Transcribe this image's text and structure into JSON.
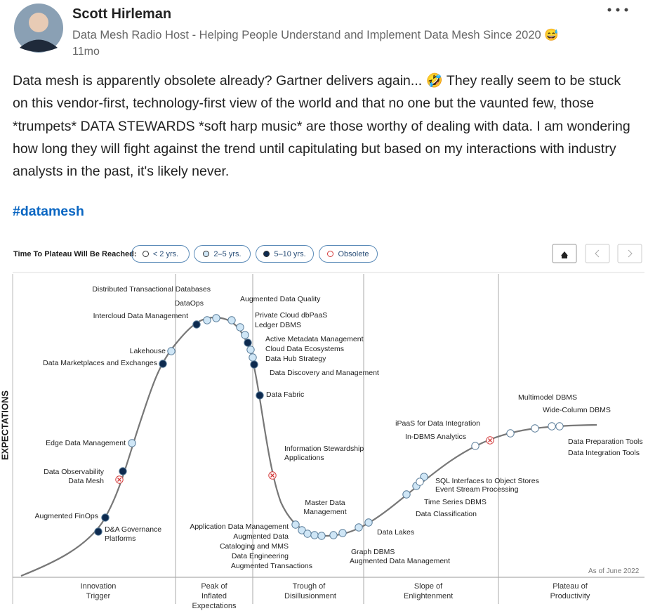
{
  "header": {
    "name": "Scott Hirleman",
    "headline": "Data Mesh Radio Host - Helping People Understand and Implement Data Mesh Since 2020 😅",
    "time": "11mo"
  },
  "post": {
    "text": "Data mesh is apparently obsolete already? Gartner delivers again... 🤣 They really seem to be stuck on this vendor-first, technology-first view of the world and that no one but the vaunted few, those *trumpets* DATA STEWARDS *soft harp music* are those worthy of dealing with data. I am wondering how long they will fight against the trend until capitulating but based on my interactions with industry analysts in the past, it's likely never.",
    "hashtag": "#datamesh"
  },
  "figure": {
    "legend_title": "Time To Plateau Will Be Reached:",
    "legend": [
      {
        "label": "< 2 yrs.",
        "color": "#ffffff"
      },
      {
        "label": "2–5 yrs.",
        "color": "#cfe6f6"
      },
      {
        "label": "5–10 yrs.",
        "color": "#0d2a4f"
      },
      {
        "label": "Obsolete",
        "color": "#d43b3b"
      }
    ],
    "y_axis": "EXPECTATIONS",
    "note": "As of June 2022",
    "phases": [
      "Innovation Trigger",
      "Peak of Inflated Expectations",
      "Trough of Disillusionment",
      "Slope of Enlightenment",
      "Plateau of Productivity"
    ],
    "nodes": [
      {
        "label": "Distributed Transactional Databases",
        "color": "#cfe6f6"
      },
      {
        "label": "DataOps",
        "color": "#cfe6f6"
      },
      {
        "label": "Intercloud Data Management",
        "color": "#0d2a4f"
      },
      {
        "label": "Augmented Data Quality",
        "color": "#cfe6f6"
      },
      {
        "label": "Private Cloud dbPaaS",
        "color": "#cfe6f6"
      },
      {
        "label": "Ledger DBMS",
        "color": "#cfe6f6"
      },
      {
        "label": "Active Metadata Management",
        "color": "#0d2a4f"
      },
      {
        "label": "Cloud Data Ecosystems",
        "color": "#cfe6f6"
      },
      {
        "label": "Data Hub Strategy",
        "color": "#cfe6f6"
      },
      {
        "label": "Data Discovery and Management",
        "color": "#0d2a4f"
      },
      {
        "label": "Data Fabric",
        "color": "#0d2a4f"
      },
      {
        "label": "Information Stewardship Applications",
        "color": "#d43b3b"
      },
      {
        "label": "Lakehouse",
        "color": "#cfe6f6"
      },
      {
        "label": "Data Marketplaces and Exchanges",
        "color": "#0d2a4f"
      },
      {
        "label": "Edge Data Management",
        "color": "#cfe6f6"
      },
      {
        "label": "Data Observability",
        "color": "#0d2a4f"
      },
      {
        "label": "Data Mesh",
        "color": "#d43b3b"
      },
      {
        "label": "Augmented FinOps",
        "color": "#0d2a4f"
      },
      {
        "label": "D&A Governance Platforms",
        "color": "#0d2a4f"
      },
      {
        "label": "Application Data Management",
        "color": "#cfe6f6"
      },
      {
        "label": "Augmented Data",
        "color": "#cfe6f6"
      },
      {
        "label": "Cataloging and MMS",
        "color": "#cfe6f6"
      },
      {
        "label": "Data Engineering",
        "color": "#cfe6f6"
      },
      {
        "label": "Augmented Transactions",
        "color": "#cfe6f6"
      },
      {
        "label": "Graph DBMS",
        "color": "#cfe6f6"
      },
      {
        "label": "Augmented Data Management",
        "color": "#cfe6f6"
      },
      {
        "label": "Master Data Management",
        "color": "#cfe6f6"
      },
      {
        "label": "Data Lakes",
        "color": "#cfe6f6"
      },
      {
        "label": "Data Classification",
        "color": "#cfe6f6"
      },
      {
        "label": "Time Series DBMS",
        "color": "#cfe6f6"
      },
      {
        "label": "SQL Interfaces to Object Stores",
        "color": "#cfe6f6"
      },
      {
        "label": "Event Stream Processing",
        "color": "#ffffff"
      },
      {
        "label": "In-DBMS Analytics",
        "color": "#ffffff"
      },
      {
        "label": "iPaaS for Data Integration",
        "color": "#d43b3b"
      },
      {
        "label": "Multimodel DBMS",
        "color": "#ffffff"
      },
      {
        "label": "Wide-Column DBMS",
        "color": "#ffffff"
      },
      {
        "label": "Data Preparation Tools",
        "color": "#ffffff"
      },
      {
        "label": "Data Integration Tools",
        "color": "#ffffff"
      }
    ]
  }
}
